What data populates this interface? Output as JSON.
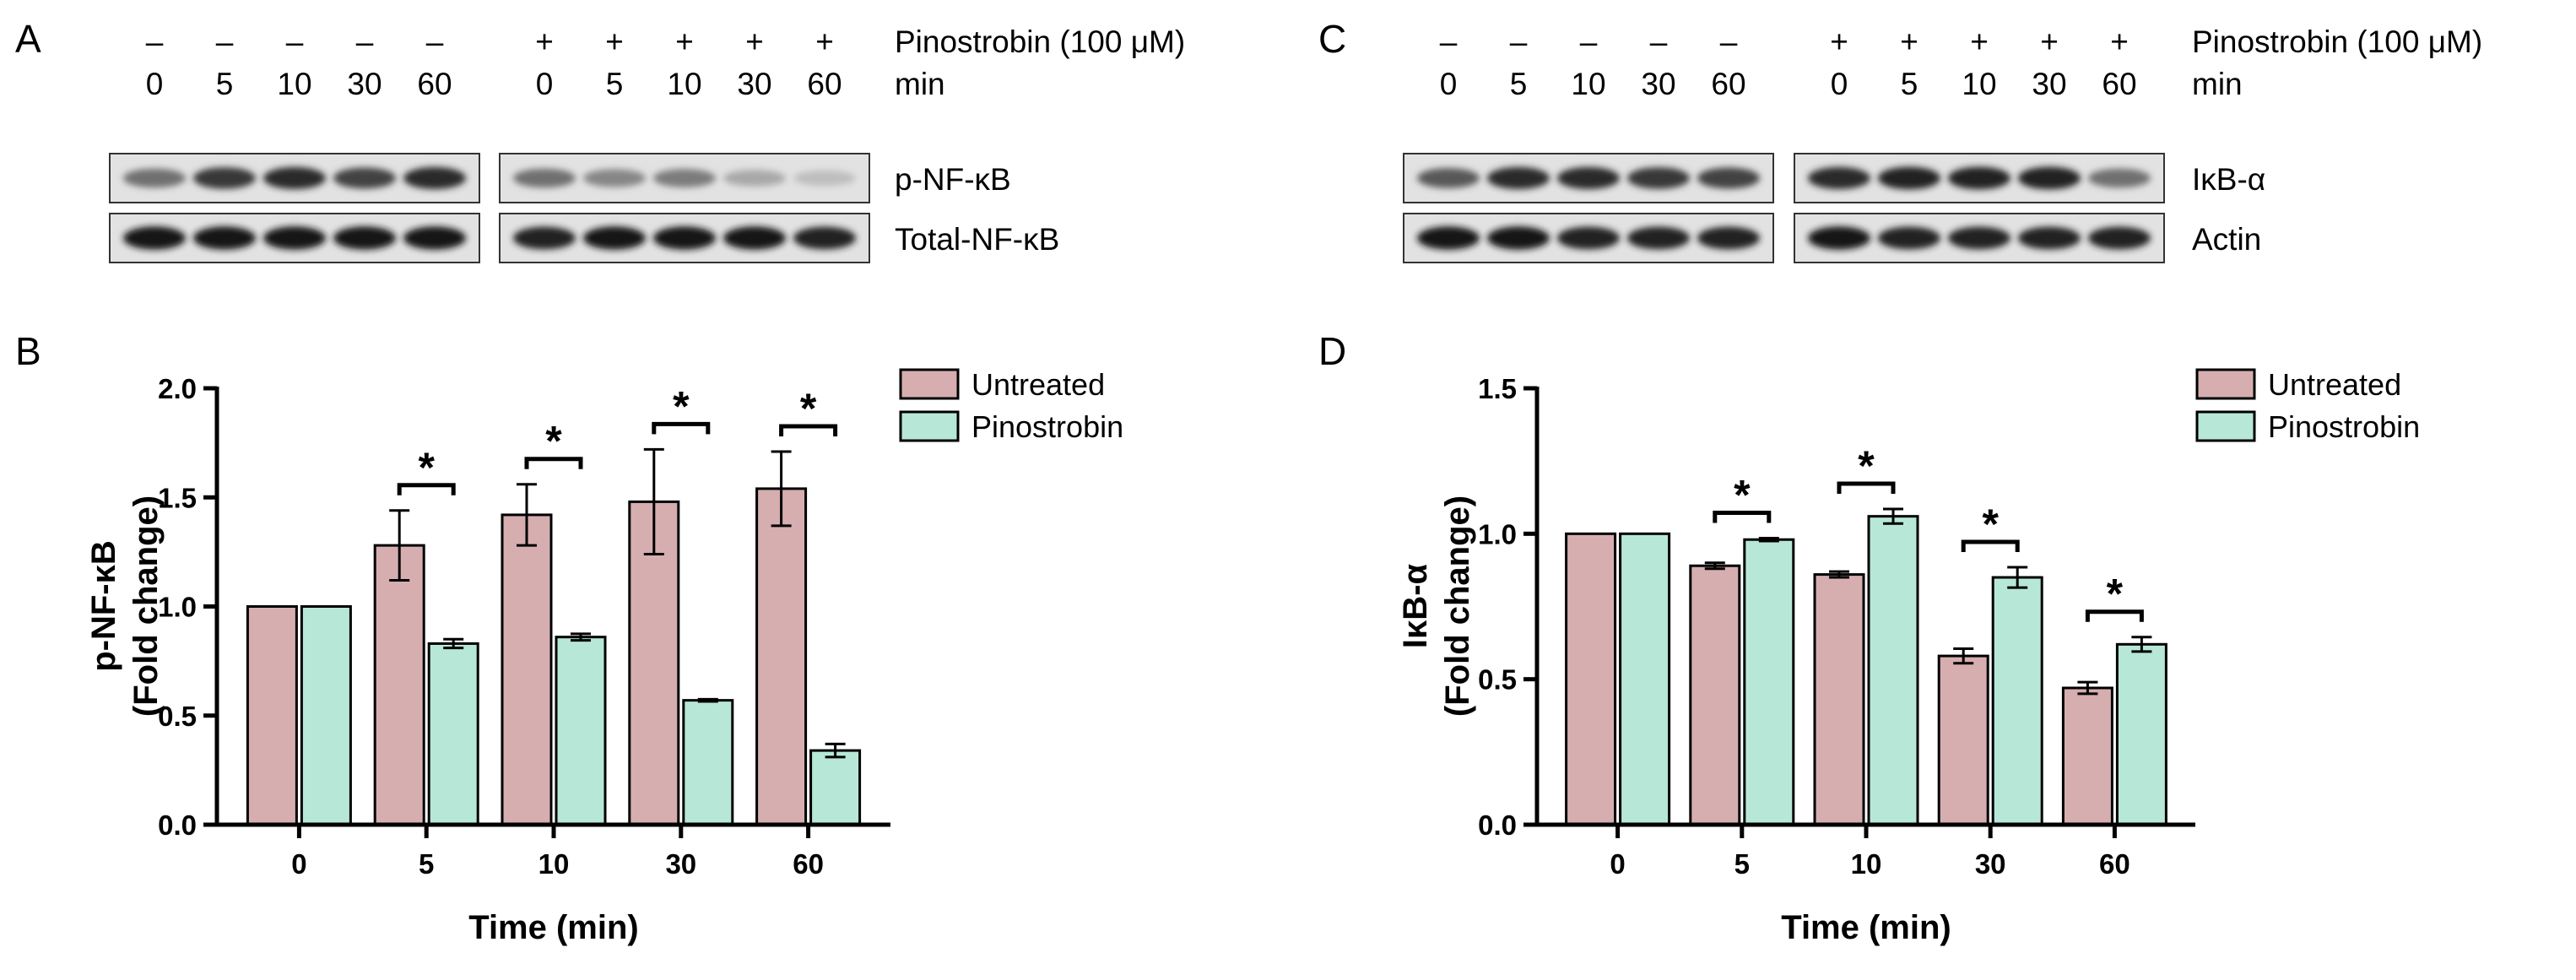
{
  "panels": {
    "A": {
      "letter": "A",
      "treatment_label": "Pinostrobin (100 μM)",
      "time_label": "min",
      "signs_left": [
        "–",
        "–",
        "–",
        "–",
        "–"
      ],
      "signs_right": [
        "+",
        "+",
        "+",
        "+",
        "+"
      ],
      "times": [
        "0",
        "5",
        "10",
        "30",
        "60"
      ],
      "blots": [
        {
          "label": "p-NF-κB",
          "intensity_left": [
            0.55,
            0.8,
            0.85,
            0.75,
            0.85
          ],
          "intensity_right": [
            0.55,
            0.45,
            0.5,
            0.3,
            0.2
          ]
        },
        {
          "label": "Total-NF-κB",
          "intensity_left": [
            0.95,
            0.95,
            0.95,
            0.95,
            0.95
          ],
          "intensity_right": [
            0.9,
            0.95,
            0.95,
            0.95,
            0.9
          ]
        }
      ]
    },
    "C": {
      "letter": "C",
      "treatment_label": "Pinostrobin (100 μM)",
      "time_label": "min",
      "signs_left": [
        "–",
        "–",
        "–",
        "–",
        "–"
      ],
      "signs_right": [
        "+",
        "+",
        "+",
        "+",
        "+"
      ],
      "times": [
        "0",
        "5",
        "10",
        "30",
        "60"
      ],
      "blots": [
        {
          "label": "IκB-α",
          "intensity_left": [
            0.65,
            0.85,
            0.85,
            0.8,
            0.75
          ],
          "intensity_right": [
            0.85,
            0.9,
            0.9,
            0.9,
            0.55
          ]
        },
        {
          "label": "Actin",
          "intensity_left": [
            0.95,
            0.95,
            0.9,
            0.9,
            0.9
          ],
          "intensity_right": [
            0.95,
            0.9,
            0.9,
            0.9,
            0.9
          ]
        }
      ]
    },
    "B": {
      "letter": "B"
    },
    "D": {
      "letter": "D"
    }
  },
  "chart_data": [
    {
      "type": "bar",
      "panel": "B",
      "xlabel": "Time (min)",
      "ylabel": "p-NF-κB",
      "ylabel2": "(Fold change)",
      "categories": [
        "0",
        "5",
        "10",
        "30",
        "60"
      ],
      "ylim": [
        0,
        2.0
      ],
      "yticks": [
        "0.0",
        "0.5",
        "1.0",
        "1.5",
        "2.0"
      ],
      "series": [
        {
          "name": "Untreated",
          "color": "#d6aeb0",
          "values": [
            1.0,
            1.28,
            1.42,
            1.48,
            1.54
          ],
          "errors": [
            0,
            0.16,
            0.14,
            0.24,
            0.17
          ]
        },
        {
          "name": "Pinostrobin",
          "color": "#b7e8d7",
          "values": [
            1.0,
            0.83,
            0.86,
            0.57,
            0.34
          ],
          "errors": [
            0,
            0.02,
            0.015,
            0.005,
            0.03
          ]
        }
      ],
      "significance": [
        "",
        "*",
        "*",
        "*",
        "*"
      ],
      "legend": "top-right"
    },
    {
      "type": "bar",
      "panel": "D",
      "xlabel": "Time (min)",
      "ylabel": "IκB-α",
      "ylabel2": "(Fold change)",
      "categories": [
        "0",
        "5",
        "10",
        "30",
        "60"
      ],
      "ylim": [
        0,
        1.5
      ],
      "yticks": [
        "0.0",
        "0.5",
        "1.0",
        "1.5"
      ],
      "series": [
        {
          "name": "Untreated",
          "color": "#d6aeb0",
          "values": [
            1.0,
            0.89,
            0.86,
            0.58,
            0.47
          ],
          "errors": [
            0,
            0.01,
            0.01,
            0.025,
            0.02
          ]
        },
        {
          "name": "Pinostrobin",
          "color": "#b7e8d7",
          "values": [
            1.0,
            0.98,
            1.06,
            0.85,
            0.62
          ],
          "errors": [
            0,
            0.005,
            0.025,
            0.035,
            0.025
          ]
        }
      ],
      "significance": [
        "",
        "*",
        "*",
        "*",
        "*"
      ],
      "legend": "top-right"
    }
  ]
}
